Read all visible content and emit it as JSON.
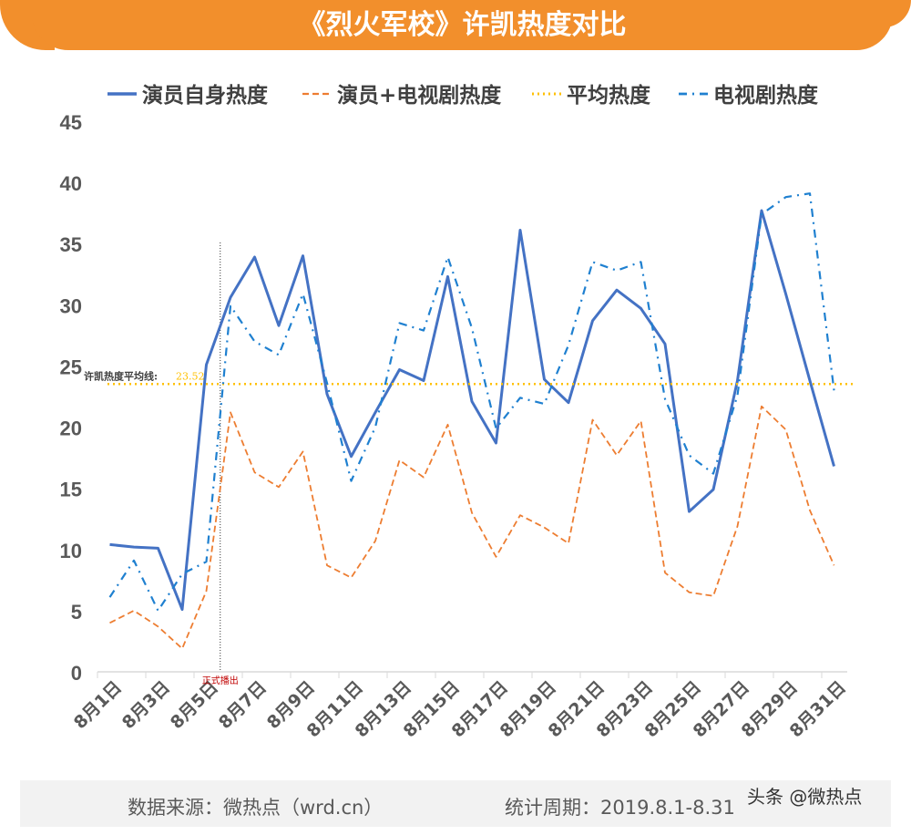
{
  "banner_title": "《烈火军校》许凯热度对比",
  "footer": {
    "source": "数据来源：微热点（wrd.cn）",
    "period": "统计周期：2019.8.1-8.31",
    "watermark": "头条 @微热点"
  },
  "chart_data": {
    "type": "line",
    "title": "《烈火军校》许凯热度对比",
    "ylim": [
      0,
      45
    ],
    "yticks": [
      0,
      5,
      10,
      15,
      20,
      25,
      30,
      35,
      40,
      45
    ],
    "categories": [
      "8月1日",
      "8月2日",
      "8月3日",
      "8月4日",
      "8月5日",
      "8月6日",
      "8月7日",
      "8月8日",
      "8月9日",
      "8月10日",
      "8月11日",
      "8月12日",
      "8月13日",
      "8月14日",
      "8月15日",
      "8月16日",
      "8月17日",
      "8月18日",
      "8月19日",
      "8月20日",
      "8月21日",
      "8月22日",
      "8月23日",
      "8月24日",
      "8月25日",
      "8月26日",
      "8月27日",
      "8月28日",
      "8月29日",
      "8月30日",
      "8月31日"
    ],
    "tick_labels": [
      "8月1日",
      "8月3日",
      "8月5日",
      "8月7日",
      "8月9日",
      "8月11日",
      "8月13日",
      "8月15日",
      "8月17日",
      "8月19日",
      "8月21日",
      "8月23日",
      "8月25日",
      "8月27日",
      "8月29日",
      "8月31日"
    ],
    "legend_position": "top",
    "series": [
      {
        "name": "演员自身热度",
        "color": "#4472c4",
        "style": "solid",
        "values": [
          10.4,
          10.2,
          10.1,
          5.1,
          25.1,
          30.6,
          33.9,
          28.3,
          34.0,
          22.7,
          17.6,
          21.2,
          24.7,
          23.8,
          32.3,
          22.1,
          18.7,
          36.1,
          23.9,
          22.0,
          28.7,
          31.2,
          29.7,
          26.8,
          13.1,
          14.9,
          23.8,
          37.7,
          30.9,
          23.8,
          16.8
        ]
      },
      {
        "name": "演员+电视剧热度",
        "color": "#ed7d31",
        "style": "dashed",
        "values": [
          4.0,
          5.0,
          3.7,
          1.9,
          6.6,
          21.2,
          16.3,
          15.1,
          18.0,
          8.7,
          7.7,
          10.7,
          17.3,
          15.9,
          20.2,
          13.0,
          9.4,
          12.8,
          11.8,
          10.5,
          20.6,
          17.7,
          20.5,
          8.1,
          6.5,
          6.2,
          11.9,
          21.7,
          19.8,
          13.2,
          8.7
        ]
      },
      {
        "name": "平均热度",
        "color": "#ffc000",
        "style": "dotted",
        "constant": 23.52
      },
      {
        "name": "电视剧热度",
        "color": "#1f80d0",
        "style": "dashdot",
        "values": [
          6.1,
          9.1,
          5.0,
          8.0,
          9.0,
          29.9,
          27.0,
          25.9,
          30.9,
          23.6,
          15.6,
          20.0,
          28.5,
          27.9,
          33.9,
          28.1,
          19.9,
          22.4,
          21.9,
          26.7,
          33.5,
          32.8,
          33.5,
          22.3,
          17.7,
          16.2,
          22.6,
          37.4,
          38.8,
          39.1,
          23.0
        ]
      }
    ],
    "annotations": {
      "average_label": "许凯热度平均线:",
      "average_value": "23.52",
      "broadcast_label": "正式播出",
      "broadcast_after": "8月5日"
    }
  }
}
